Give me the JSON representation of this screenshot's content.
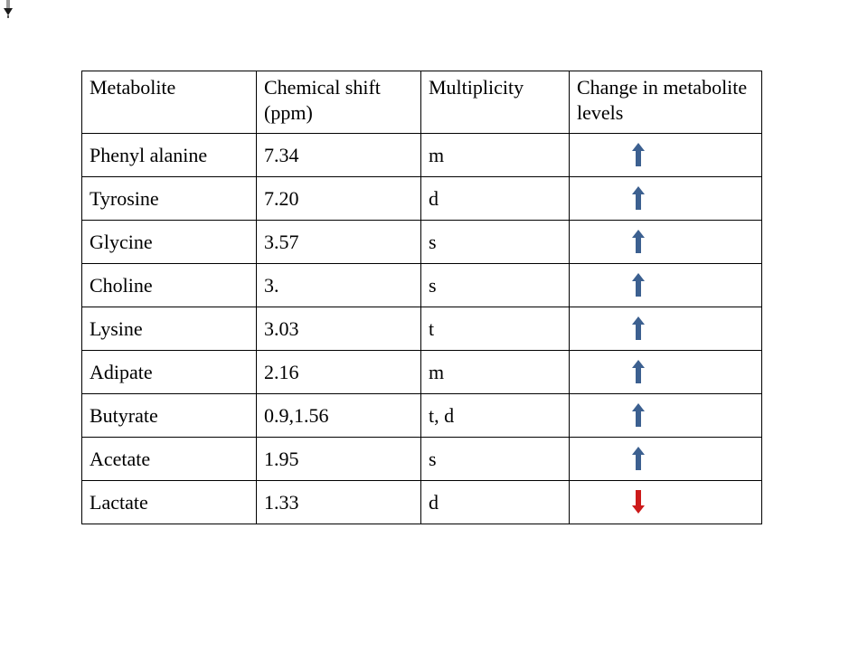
{
  "artifact": {
    "name": "small-down-arrow-cursor"
  },
  "table": {
    "headers": [
      "Metabolite",
      "Chemical shift (ppm)",
      "Multiplicity",
      "Change in metabolite levels"
    ],
    "rows": [
      {
        "metabolite": "Phenyl alanine",
        "shift": "7.34",
        "multiplicity": "m",
        "change": "up"
      },
      {
        "metabolite": "Tyrosine",
        "shift": "7.20",
        "multiplicity": "d",
        "change": "up"
      },
      {
        "metabolite": "Glycine",
        "shift": "3.57",
        "multiplicity": "s",
        "change": "up"
      },
      {
        "metabolite": "Choline",
        "shift": "3.",
        "multiplicity": "s",
        "change": "up"
      },
      {
        "metabolite": "Lysine",
        "shift": "3.03",
        "multiplicity": "t",
        "change": "up"
      },
      {
        "metabolite": "Adipate",
        "shift": "2.16",
        "multiplicity": "m",
        "change": "up"
      },
      {
        "metabolite": "Butyrate",
        "shift": "0.9,1.56",
        "multiplicity": "t, d",
        "change": "up"
      },
      {
        "metabolite": "Acetate",
        "shift": "1.95",
        "multiplicity": "s",
        "change": "up"
      },
      {
        "metabolite": "Lactate",
        "shift": "1.33",
        "multiplicity": "d",
        "change": "down"
      }
    ],
    "colors": {
      "up_arrow": "#3C6090",
      "down_arrow": "#CC1A1A",
      "border": "#000000"
    }
  }
}
